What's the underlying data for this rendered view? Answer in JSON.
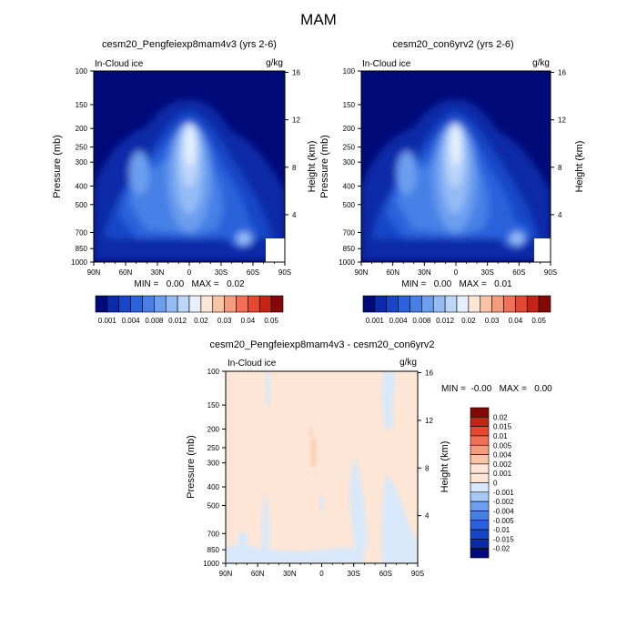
{
  "figure": {
    "title": "MAM"
  },
  "panels": [
    {
      "title": "cesm20_Pengfeiexp8mam4v3 (yrs 2-6)",
      "left_label": "In-Cloud ice",
      "right_label": "g/kg",
      "ylabel": "Pressure (mb)",
      "ylabel_right": "Height (km)",
      "min_max": "MIN =   0.00   MAX =   0.02"
    },
    {
      "title": "cesm20_con6yrv2 (yrs 2-6)",
      "left_label": "In-Cloud ice",
      "right_label": "g/kg",
      "ylabel": "Pressure (mb)",
      "ylabel_right": "Height (km)",
      "min_max": "MIN =   0.00   MAX =   0.01"
    },
    {
      "title": "cesm20_Pengfeiexp8mam4v3 - cesm20_con6yrv2",
      "left_label": "In-Cloud ice",
      "right_label": "g/kg",
      "ylabel": "Pressure (mb)",
      "ylabel_right": "Height (km)",
      "min_max": "MIN =  -0.00   MAX =   0.00"
    }
  ],
  "axes": {
    "x_ticks": [
      "90N",
      "60N",
      "30N",
      "0",
      "30S",
      "60S",
      "90S"
    ],
    "y_ticks": [
      "100",
      "150",
      "200",
      "250",
      "300",
      "400",
      "500",
      "700",
      "850",
      "1000"
    ],
    "height_ticks": [
      "4",
      "8",
      "12",
      "16"
    ]
  },
  "colorbars": {
    "abs_labels": [
      "0.001",
      "0.004",
      "0.008",
      "0.012",
      "0.02",
      "0.03",
      "0.04",
      "0.05"
    ],
    "abs_colors": [
      "#000a78",
      "#0a2aa8",
      "#1846c8",
      "#2a62dc",
      "#4680e6",
      "#6c9eef",
      "#94bcf5",
      "#bcd6fa",
      "#e6f0fc",
      "#fde6d6",
      "#f9c4a6",
      "#f59c7c",
      "#ef7054",
      "#e4482e",
      "#c42414",
      "#840808"
    ],
    "diff_labels": [
      "0.02",
      "0.015",
      "0.01",
      "0.005",
      "0.004",
      "0.002",
      "0.001",
      "0",
      "-0.001",
      "-0.002",
      "-0.004",
      "-0.005",
      "-0.01",
      "-0.015",
      "-0.02"
    ],
    "diff_colors": [
      "#840808",
      "#c42414",
      "#e4482e",
      "#ef7054",
      "#f59c7c",
      "#f9c4a6",
      "#fde6d6",
      "#fde6d6",
      "#d6e8fa",
      "#a6c8f4",
      "#6c9eef",
      "#4680e6",
      "#2a62dc",
      "#1846c8",
      "#0a2aa8",
      "#000a78"
    ]
  },
  "chart_data": [
    {
      "type": "heatmap",
      "title": "cesm20_Pengfeiexp8mam4v3 (yrs 2-6)",
      "variable": "In-Cloud ice",
      "units": "g/kg",
      "xlabel": "",
      "ylabel": "Pressure (mb)",
      "ylabel_right": "Height (km)",
      "x_ticks": [
        "90N",
        "60N",
        "30N",
        "0",
        "30S",
        "60S",
        "90S"
      ],
      "y_ticks": [
        100,
        150,
        200,
        250,
        300,
        400,
        500,
        700,
        850,
        1000
      ],
      "ylim": [
        1000,
        100
      ],
      "y_scale": "log",
      "min": 0.0,
      "max": 0.02,
      "features": [
        {
          "lat": 0,
          "pressure": 250,
          "value": 0.02
        },
        {
          "lat": 30,
          "pressure": 350,
          "value": 0.012
        },
        {
          "lat": -60,
          "pressure": 750,
          "value": 0.012
        },
        {
          "lat": 0,
          "pressure": 900,
          "value": 0.004
        }
      ]
    },
    {
      "type": "heatmap",
      "title": "cesm20_con6yrv2 (yrs 2-6)",
      "variable": "In-Cloud ice",
      "units": "g/kg",
      "xlabel": "",
      "ylabel": "Pressure (mb)",
      "ylabel_right": "Height (km)",
      "x_ticks": [
        "90N",
        "60N",
        "30N",
        "0",
        "30S",
        "60S",
        "90S"
      ],
      "y_ticks": [
        100,
        150,
        200,
        250,
        300,
        400,
        500,
        700,
        850,
        1000
      ],
      "ylim": [
        1000,
        100
      ],
      "y_scale": "log",
      "min": 0.0,
      "max": 0.01,
      "features": [
        {
          "lat": 0,
          "pressure": 250,
          "value": 0.012
        },
        {
          "lat": 30,
          "pressure": 350,
          "value": 0.008
        },
        {
          "lat": -60,
          "pressure": 750,
          "value": 0.012
        },
        {
          "lat": 0,
          "pressure": 900,
          "value": 0.004
        }
      ]
    },
    {
      "type": "heatmap",
      "title": "cesm20_Pengfeiexp8mam4v3 - cesm20_con6yrv2",
      "variable": "In-Cloud ice",
      "units": "g/kg",
      "xlabel": "",
      "ylabel": "Pressure (mb)",
      "ylabel_right": "Height (km)",
      "x_ticks": [
        "90N",
        "60N",
        "30N",
        "0",
        "30S",
        "60S",
        "90S"
      ],
      "y_ticks": [
        100,
        150,
        200,
        250,
        300,
        400,
        500,
        700,
        850,
        1000
      ],
      "ylim": [
        1000,
        100
      ],
      "y_scale": "log",
      "min": -0.0,
      "max": 0.0,
      "background_value": 0.001,
      "features": [
        {
          "lat": -65,
          "pressure": 150,
          "value": -0.001
        },
        {
          "lat": -30,
          "pressure": 500,
          "value": -0.001
        },
        {
          "lat": -70,
          "pressure": 800,
          "value": -0.001
        },
        {
          "lat": 15,
          "pressure": 900,
          "value": -0.001
        },
        {
          "lat": 5,
          "pressure": 250,
          "value": 0.002
        }
      ]
    }
  ]
}
